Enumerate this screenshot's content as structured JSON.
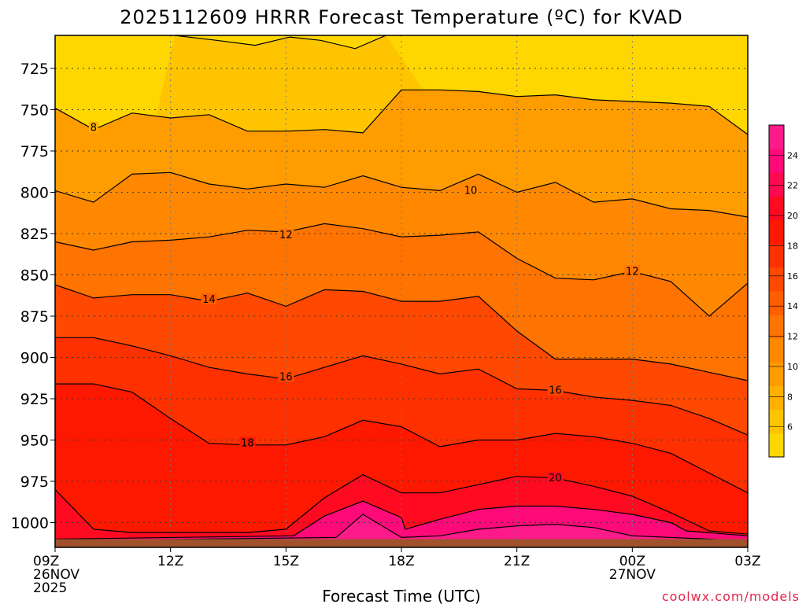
{
  "chart_data": {
    "type": "contour",
    "title": "2025112609 HRRR Forecast Temperature (ºC) for KVAD",
    "xlabel": "Forecast Time (UTC)",
    "ylabel": "",
    "credit": "coolwx.com/models",
    "x_ticks": [
      {
        "hour": 9,
        "lines": [
          "09Z",
          "26NOV",
          "2025"
        ]
      },
      {
        "hour": 12,
        "lines": [
          "12Z"
        ]
      },
      {
        "hour": 15,
        "lines": [
          "15Z"
        ]
      },
      {
        "hour": 18,
        "lines": [
          "18Z"
        ]
      },
      {
        "hour": 21,
        "lines": [
          "21Z"
        ]
      },
      {
        "hour": 24,
        "lines": [
          "00Z",
          "27NOV"
        ]
      },
      {
        "hour": 27,
        "lines": [
          "03Z"
        ]
      }
    ],
    "xlim": [
      9,
      27
    ],
    "y_ticks": [
      725,
      750,
      775,
      800,
      825,
      850,
      875,
      900,
      925,
      950,
      975,
      1000
    ],
    "ylim_hPa": [
      705,
      1015
    ],
    "ground_level_hPa": 1010,
    "colorbar": {
      "ticks": [
        6,
        8,
        10,
        12,
        14,
        16,
        18,
        20,
        22,
        24
      ],
      "range": [
        4,
        26
      ],
      "colors": [
        "#ffd700",
        "#ffc400",
        "#ffb000",
        "#ff9c00",
        "#ff8800",
        "#ff7300",
        "#ff5e00",
        "#ff4800",
        "#ff3000",
        "#ff1800",
        "#ff0a20",
        "#ff0a50",
        "#ff0a78",
        "#ff1a8a"
      ]
    },
    "isotherms": [
      {
        "value": 6,
        "points": [
          [
            12.1,
            705
          ],
          [
            13.2,
            708
          ],
          [
            14.2,
            711
          ],
          [
            15.1,
            706
          ],
          [
            15.9,
            708
          ],
          [
            16.8,
            713
          ],
          [
            17.6,
            705
          ]
        ]
      },
      {
        "value": 8,
        "points": [
          [
            9,
            749
          ],
          [
            10,
            762
          ],
          [
            11,
            752
          ],
          [
            12,
            755
          ],
          [
            13,
            753
          ],
          [
            14,
            763
          ],
          [
            15,
            763
          ],
          [
            16,
            762
          ],
          [
            17,
            764
          ],
          [
            18,
            738
          ],
          [
            19,
            738
          ],
          [
            20,
            739
          ],
          [
            21,
            742
          ],
          [
            22,
            741
          ],
          [
            23,
            744
          ],
          [
            24,
            745
          ],
          [
            25,
            746
          ],
          [
            26,
            748
          ],
          [
            27,
            765
          ]
        ]
      },
      {
        "value": 10,
        "points": [
          [
            9,
            799
          ],
          [
            10,
            806
          ],
          [
            11,
            789
          ],
          [
            12,
            788
          ],
          [
            13,
            795
          ],
          [
            14,
            798
          ],
          [
            15,
            795
          ],
          [
            16,
            797
          ],
          [
            17,
            790
          ],
          [
            18,
            797
          ],
          [
            19,
            799
          ],
          [
            20,
            789
          ],
          [
            21,
            800
          ],
          [
            22,
            794
          ],
          [
            23,
            806
          ],
          [
            24,
            804
          ],
          [
            25,
            810
          ],
          [
            26,
            811
          ],
          [
            27,
            815
          ]
        ]
      },
      {
        "value": 12,
        "points": [
          [
            9,
            830
          ],
          [
            10,
            835
          ],
          [
            11,
            830
          ],
          [
            12,
            829
          ],
          [
            13,
            827
          ],
          [
            14,
            823
          ],
          [
            15,
            824
          ],
          [
            16,
            819
          ],
          [
            17,
            822
          ],
          [
            18,
            827
          ],
          [
            19,
            826
          ],
          [
            20,
            824
          ],
          [
            21,
            840
          ],
          [
            22,
            852
          ],
          [
            23,
            853
          ],
          [
            24,
            848
          ],
          [
            25,
            854
          ],
          [
            26,
            875
          ],
          [
            27,
            855
          ]
        ]
      },
      {
        "value": 14,
        "points": [
          [
            9,
            856
          ],
          [
            10,
            864
          ],
          [
            11,
            862
          ],
          [
            12,
            862
          ],
          [
            13,
            866
          ],
          [
            14,
            861
          ],
          [
            15,
            869
          ],
          [
            16,
            859
          ],
          [
            17,
            860
          ],
          [
            18,
            866
          ],
          [
            19,
            866
          ],
          [
            20,
            863
          ],
          [
            21,
            884
          ],
          [
            22,
            901
          ],
          [
            23,
            901
          ],
          [
            24,
            901
          ],
          [
            25,
            904
          ],
          [
            26,
            909
          ],
          [
            27,
            914
          ]
        ]
      },
      {
        "value": 16,
        "points": [
          [
            9,
            888
          ],
          [
            10,
            888
          ],
          [
            11,
            893
          ],
          [
            12,
            899
          ],
          [
            13,
            906
          ],
          [
            14,
            910
          ],
          [
            15,
            913
          ],
          [
            16,
            906
          ],
          [
            17,
            899
          ],
          [
            18,
            904
          ],
          [
            19,
            910
          ],
          [
            20,
            907
          ],
          [
            21,
            919
          ],
          [
            22,
            920
          ],
          [
            23,
            924
          ],
          [
            24,
            926
          ],
          [
            25,
            929
          ],
          [
            26,
            937
          ],
          [
            27,
            947
          ]
        ]
      },
      {
        "value": 18,
        "points": [
          [
            9,
            916
          ],
          [
            10,
            916
          ],
          [
            11,
            921
          ],
          [
            12,
            937
          ],
          [
            13,
            952
          ],
          [
            14,
            953
          ],
          [
            15,
            953
          ],
          [
            16,
            948
          ],
          [
            17,
            938
          ],
          [
            18,
            942
          ],
          [
            19,
            954
          ],
          [
            20,
            950
          ],
          [
            21,
            950
          ],
          [
            22,
            946
          ],
          [
            23,
            948
          ],
          [
            24,
            952
          ],
          [
            25,
            958
          ],
          [
            26,
            970
          ],
          [
            27,
            982
          ]
        ]
      },
      {
        "value": 20,
        "points": [
          [
            9,
            980
          ],
          [
            10,
            1004
          ],
          [
            11,
            1006
          ],
          [
            12,
            1006
          ],
          [
            13,
            1006
          ],
          [
            14,
            1006
          ],
          [
            15,
            1004
          ],
          [
            16,
            985
          ],
          [
            17,
            971
          ],
          [
            18,
            982
          ],
          [
            19,
            982
          ],
          [
            20,
            977
          ],
          [
            21,
            972
          ],
          [
            22,
            973
          ],
          [
            23,
            978
          ],
          [
            24,
            984
          ],
          [
            25,
            994
          ],
          [
            26,
            1005
          ],
          [
            27,
            1007
          ]
        ]
      },
      {
        "value": 22,
        "points": [
          [
            9,
            1010
          ],
          [
            15.2,
            1008
          ],
          [
            16,
            996
          ],
          [
            17,
            987
          ],
          [
            18,
            997
          ],
          [
            18.1,
            1004
          ],
          [
            19,
            998
          ],
          [
            20,
            992
          ],
          [
            21,
            990
          ],
          [
            22,
            990
          ],
          [
            23,
            992
          ],
          [
            24,
            995
          ],
          [
            25,
            1000
          ],
          [
            25.4,
            1005
          ],
          [
            27,
            1008
          ]
        ]
      },
      {
        "value": 24,
        "points": [
          [
            9,
            1011
          ],
          [
            16.3,
            1009
          ],
          [
            17,
            995
          ],
          [
            18,
            1009
          ],
          [
            19,
            1008
          ],
          [
            20,
            1004
          ],
          [
            21,
            1002
          ],
          [
            22,
            1001
          ],
          [
            23,
            1003
          ],
          [
            24,
            1008
          ],
          [
            27,
            1011
          ]
        ]
      }
    ],
    "contour_labels": [
      {
        "text": "8",
        "hour": 10,
        "hPa": 761
      },
      {
        "text": "10",
        "hour": 19.8,
        "hPa": 799
      },
      {
        "text": "12",
        "hour": 15,
        "hPa": 826
      },
      {
        "text": "12",
        "hour": 24,
        "hPa": 848
      },
      {
        "text": "14",
        "hour": 13,
        "hPa": 865
      },
      {
        "text": "16",
        "hour": 15,
        "hPa": 912
      },
      {
        "text": "16",
        "hour": 22,
        "hPa": 920
      },
      {
        "text": "18",
        "hour": 14,
        "hPa": 952
      },
      {
        "text": "20",
        "hour": 22,
        "hPa": 973
      }
    ]
  }
}
